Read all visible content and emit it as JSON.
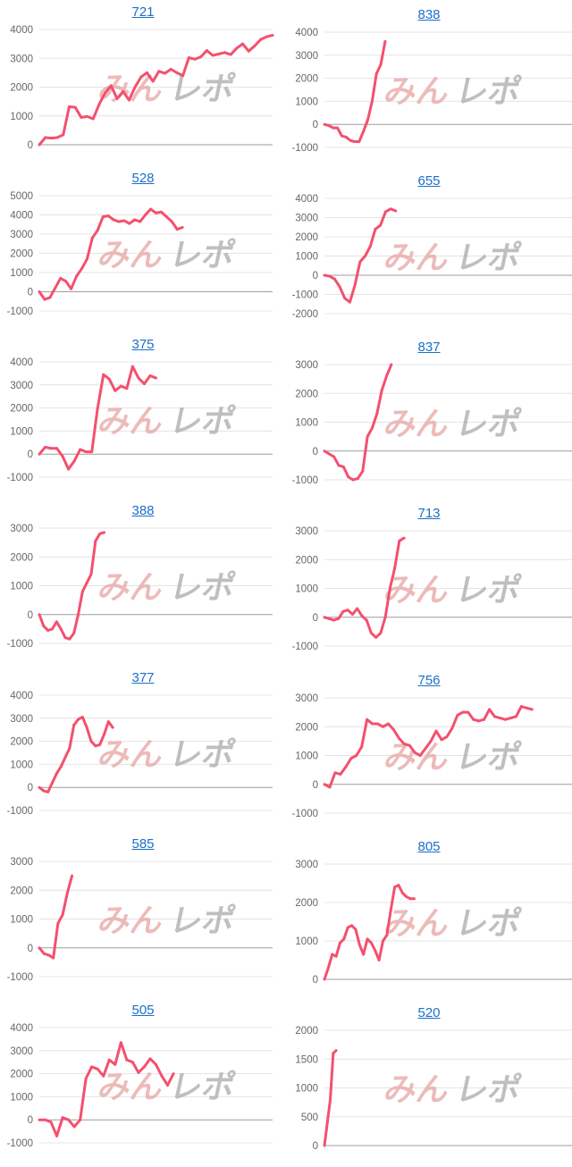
{
  "watermark": {
    "text_red": "みん",
    "text_gray": "レポ"
  },
  "line_color": "#f4506e",
  "chart_data": [
    {
      "type": "line",
      "title": "721",
      "ylim": [
        0,
        4000
      ],
      "yticks": [
        "0",
        "1000",
        "2000",
        "3000",
        "4000"
      ],
      "xlim": [
        0,
        39
      ],
      "values": [
        0,
        250,
        230,
        250,
        350,
        1320,
        1300,
        950,
        980,
        900,
        1400,
        1800,
        2050,
        1600,
        1850,
        1550,
        2000,
        2350,
        2500,
        2200,
        2550,
        2480,
        2620,
        2500,
        2400,
        3020,
        2970,
        3050,
        3270,
        3100,
        3150,
        3200,
        3130,
        3350,
        3500,
        3250,
        3430,
        3650,
        3750,
        3800
      ]
    },
    {
      "type": "line",
      "title": "838",
      "ylim": [
        -1000,
        4000
      ],
      "yticks": [
        "-1000",
        "0",
        "1000",
        "2000",
        "3000",
        "4000"
      ],
      "xlim": [
        0,
        54
      ],
      "values": [
        0,
        -50,
        -150,
        -150,
        -500,
        -550,
        -700,
        -750,
        -750,
        -300,
        200,
        1000,
        2200,
        2600,
        3600
      ]
    },
    {
      "type": "line",
      "title": "528",
      "ylim": [
        -1000,
        5000
      ],
      "yticks": [
        "-1000",
        "0",
        "1000",
        "2000",
        "3000",
        "4000",
        "5000"
      ],
      "xlim": [
        0,
        44
      ],
      "values": [
        0,
        -400,
        -300,
        200,
        700,
        550,
        150,
        800,
        1200,
        1700,
        2800,
        3200,
        3900,
        3950,
        3750,
        3650,
        3700,
        3550,
        3750,
        3650,
        4000,
        4300,
        4100,
        4150,
        3900,
        3650,
        3250,
        3350
      ]
    },
    {
      "type": "line",
      "title": "655",
      "ylim": [
        -2000,
        4000
      ],
      "yticks": [
        "-2000",
        "-1000",
        "0",
        "1000",
        "2000",
        "3000",
        "4000"
      ],
      "xlim": [
        0,
        46
      ],
      "values": [
        0,
        -50,
        -200,
        -600,
        -1200,
        -1400,
        -500,
        700,
        1000,
        1500,
        2400,
        2600,
        3300,
        3450,
        3350
      ]
    },
    {
      "type": "line",
      "title": "375",
      "ylim": [
        -1000,
        4000
      ],
      "yticks": [
        "-1000",
        "0",
        "1000",
        "2000",
        "3000",
        "4000"
      ],
      "xlim": [
        0,
        40
      ],
      "values": [
        0,
        300,
        250,
        250,
        -100,
        -650,
        -300,
        200,
        100,
        100,
        2000,
        3450,
        3250,
        2750,
        2950,
        2850,
        3800,
        3300,
        3050,
        3400,
        3300
      ]
    },
    {
      "type": "line",
      "title": "837",
      "ylim": [
        -1000,
        3000
      ],
      "yticks": [
        "-1000",
        "0",
        "1000",
        "2000",
        "3000"
      ],
      "xlim": [
        0,
        49
      ],
      "values": [
        0,
        -100,
        -200,
        -500,
        -550,
        -900,
        -1000,
        -950,
        -700,
        500,
        800,
        1300,
        2100,
        2600,
        3000
      ]
    },
    {
      "type": "line",
      "title": "388",
      "ylim": [
        -1000,
        3000
      ],
      "yticks": [
        "-1000",
        "0",
        "1000",
        "2000",
        "3000"
      ],
      "xlim": [
        0,
        54
      ],
      "values": [
        0,
        -400,
        -550,
        -500,
        -250,
        -500,
        -800,
        -850,
        -650,
        0,
        800,
        1100,
        1400,
        2550,
        2800,
        2850
      ]
    },
    {
      "type": "line",
      "title": "713",
      "ylim": [
        -1000,
        3000
      ],
      "yticks": [
        "-1000",
        "0",
        "1000",
        "2000",
        "3000"
      ],
      "xlim": [
        0,
        50
      ],
      "values": [
        0,
        -50,
        -100,
        -50,
        200,
        250,
        100,
        300,
        50,
        -100,
        -550,
        -700,
        -550,
        0,
        1000,
        1700,
        2650,
        2750
      ]
    },
    {
      "type": "line",
      "title": "377",
      "ylim": [
        -1000,
        4000
      ],
      "yticks": [
        "-1000",
        "0",
        "1000",
        "2000",
        "3000",
        "4000"
      ],
      "xlim": [
        0,
        54
      ],
      "values": [
        0,
        -150,
        -200,
        200,
        600,
        900,
        1300,
        1700,
        2700,
        2950,
        3050,
        2600,
        2000,
        1800,
        1850,
        2300,
        2850,
        2600
      ]
    },
    {
      "type": "line",
      "title": "756",
      "ylim": [
        -1000,
        3000
      ],
      "yticks": [
        "-1000",
        "0",
        "1000",
        "2000",
        "3000"
      ],
      "xlim": [
        0,
        44
      ],
      "values": [
        0,
        -100,
        400,
        350,
        600,
        900,
        1000,
        1300,
        2250,
        2100,
        2100,
        2000,
        2100,
        1900,
        1600,
        1400,
        1350,
        1100,
        1000,
        1250,
        1500,
        1850,
        1550,
        1650,
        1950,
        2400,
        2500,
        2500,
        2250,
        2200,
        2250,
        2600,
        2350,
        2300,
        2250,
        2300,
        2350,
        2700,
        2650,
        2600
      ]
    },
    {
      "type": "line",
      "title": "585",
      "ylim": [
        -1000,
        3000
      ],
      "yticks": [
        "-1000",
        "0",
        "1000",
        "2000",
        "3000"
      ],
      "xlim": [
        0,
        50
      ],
      "values": [
        0,
        -200,
        -250,
        -350,
        850,
        1150,
        1900,
        2500
      ]
    },
    {
      "type": "line",
      "title": "805",
      "ylim": [
        0,
        3000
      ],
      "yticks": [
        "0",
        "1000",
        "2000",
        "3000"
      ],
      "xlim": [
        0,
        60
      ],
      "values": [
        0,
        300,
        650,
        600,
        950,
        1050,
        1350,
        1400,
        1300,
        900,
        650,
        1050,
        950,
        750,
        500,
        1000,
        1150,
        1800,
        2400,
        2450,
        2250,
        2150,
        2100,
        2100
      ]
    },
    {
      "type": "line",
      "title": "505",
      "ylim": [
        -1000,
        4000
      ],
      "yticks": [
        "-1000",
        "0",
        "1000",
        "2000",
        "3000",
        "4000"
      ],
      "xlim": [
        0,
        40
      ],
      "values": [
        0,
        0,
        -100,
        -700,
        100,
        0,
        -300,
        0,
        1800,
        2300,
        2200,
        1900,
        2600,
        2400,
        3350,
        2600,
        2500,
        2050,
        2300,
        2650,
        2400,
        1900,
        1500,
        2000
      ]
    },
    {
      "type": "line",
      "title": "520",
      "ylim": [
        0,
        2000
      ],
      "yticks": [
        "0",
        "500",
        "1000",
        "1500",
        "2000"
      ],
      "xlim": [
        0,
        80
      ],
      "values": [
        0,
        400,
        800,
        1600,
        1650
      ]
    }
  ]
}
